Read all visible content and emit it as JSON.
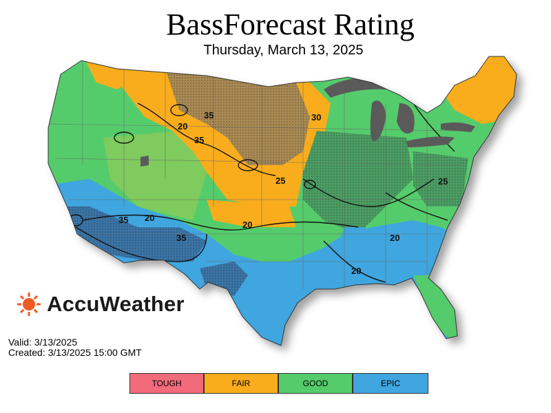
{
  "header": {
    "title": "BassForecast Rating",
    "subtitle": "Thursday, March 13, 2025"
  },
  "brand": {
    "name": "AccuWeather",
    "icon": "sun-icon",
    "color": "#f05a22"
  },
  "meta": {
    "valid": "Valid: 3/13/2025",
    "created": "Created: 3/13/2025 15:00 GMT"
  },
  "legend": [
    {
      "label": "TOUGH",
      "color": "#f26b7a"
    },
    {
      "label": "FAIR",
      "color": "#f9ad1c"
    },
    {
      "label": "GOOD",
      "color": "#55cc6b"
    },
    {
      "label": "EPIC",
      "color": "#3fa6e0"
    }
  ],
  "map": {
    "contour_labels": [
      "35",
      "20",
      "30",
      "35",
      "25",
      "20",
      "35",
      "20",
      "20",
      "25",
      "35",
      "20"
    ],
    "colors": {
      "fair": "#f9ad1c",
      "fair_dark": "#a98a52",
      "good": "#55cc6b",
      "good_light": "#8acb5a",
      "good_dark": "#4b9e63",
      "epic": "#3fa6e0",
      "epic_dark": "#3a74a6",
      "lakes": "#5a5a5a"
    }
  }
}
